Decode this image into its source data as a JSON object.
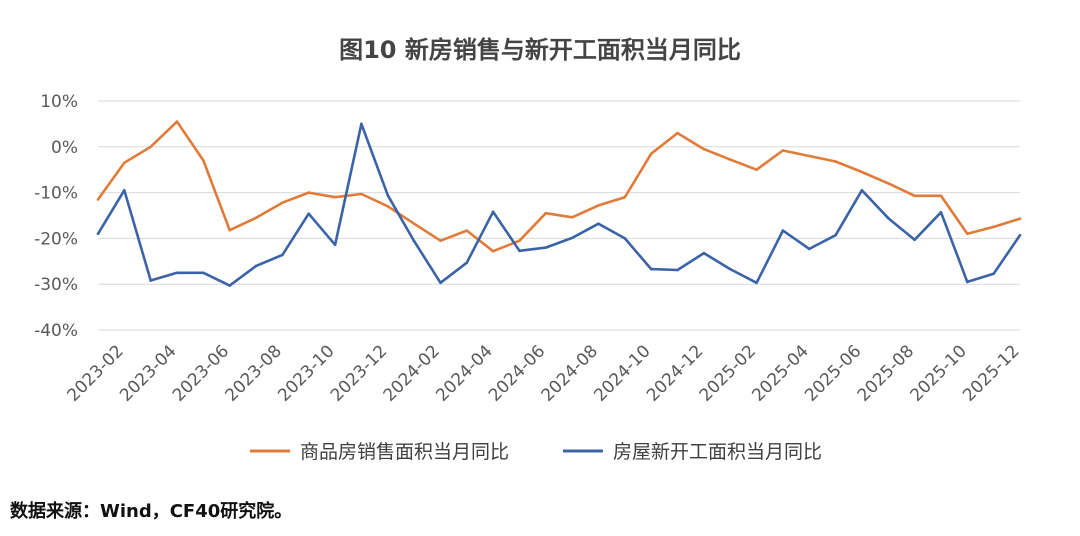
{
  "chart_data": {
    "type": "line",
    "title": "图10   新房销售与新开工面积当月同比",
    "xlabel": "",
    "ylabel": "",
    "ylim": [
      -40,
      10
    ],
    "ytick_values": [
      10,
      0,
      -10,
      -20,
      -30,
      -40
    ],
    "ytick_labels": [
      "10%",
      "0%",
      "-10%",
      "-20%",
      "-30%",
      "-40%"
    ],
    "grid": true,
    "legend_position": "bottom",
    "x": [
      "2023-01",
      "2023-02",
      "2023-03",
      "2023-04",
      "2023-05",
      "2023-06",
      "2023-07",
      "2023-08",
      "2023-09",
      "2023-10",
      "2023-11",
      "2023-12",
      "2024-01",
      "2024-02",
      "2024-03",
      "2024-04",
      "2024-05",
      "2024-06",
      "2024-07",
      "2024-08",
      "2024-09",
      "2024-10",
      "2024-11",
      "2024-12",
      "2025-01",
      "2025-02",
      "2025-03",
      "2025-04",
      "2025-05",
      "2025-06",
      "2025-07",
      "2025-08",
      "2025-09",
      "2025-10",
      "2025-11",
      "2025-12"
    ],
    "tick_labels": [
      "2023-02",
      "2023-04",
      "2023-06",
      "2023-08",
      "2023-10",
      "2023-12",
      "2024-02",
      "2024-04",
      "2024-06",
      "2024-08",
      "2024-10",
      "2024-12",
      "2025-02",
      "2025-04",
      "2025-06",
      "2025-08",
      "2025-10",
      "2025-12"
    ],
    "series": [
      {
        "name": "商品房销售面积当月同比",
        "color": "#E07B39",
        "values": [
          -11.5,
          -3.5,
          0,
          5.5,
          -3,
          -18.2,
          -15.5,
          -12.2,
          -10,
          -11,
          -10.3,
          -13,
          -16.8,
          -20.5,
          -18.3,
          -22.8,
          -20.5,
          -14.5,
          -15.4,
          -12.8,
          -11,
          -1.5,
          3,
          -0.5,
          -2.8,
          -5,
          -0.8,
          -2,
          -3.2,
          -5.5,
          -8,
          -10.7,
          -10.7,
          -19,
          -17.5,
          -15.7
        ]
      },
      {
        "name": "房屋新开工面积当月同比",
        "color": "#3B63A7",
        "values": [
          -19,
          -9.5,
          -29.2,
          -27.5,
          -27.5,
          -30.3,
          -26,
          -23.6,
          -14.6,
          -21.4,
          5,
          -10.6,
          -20.6,
          -29.7,
          -25.3,
          -14.2,
          -22.7,
          -22,
          -19.9,
          -16.8,
          -20,
          -26.7,
          -26.9,
          -23.2,
          -26.7,
          -29.7,
          -18.3,
          -22.3,
          -19.3,
          -9.5,
          -15.6,
          -20.3,
          -14.3,
          -29.5,
          -27.7,
          -19.3
        ]
      }
    ]
  },
  "source_note": "数据来源：Wind，CF40研究院。"
}
